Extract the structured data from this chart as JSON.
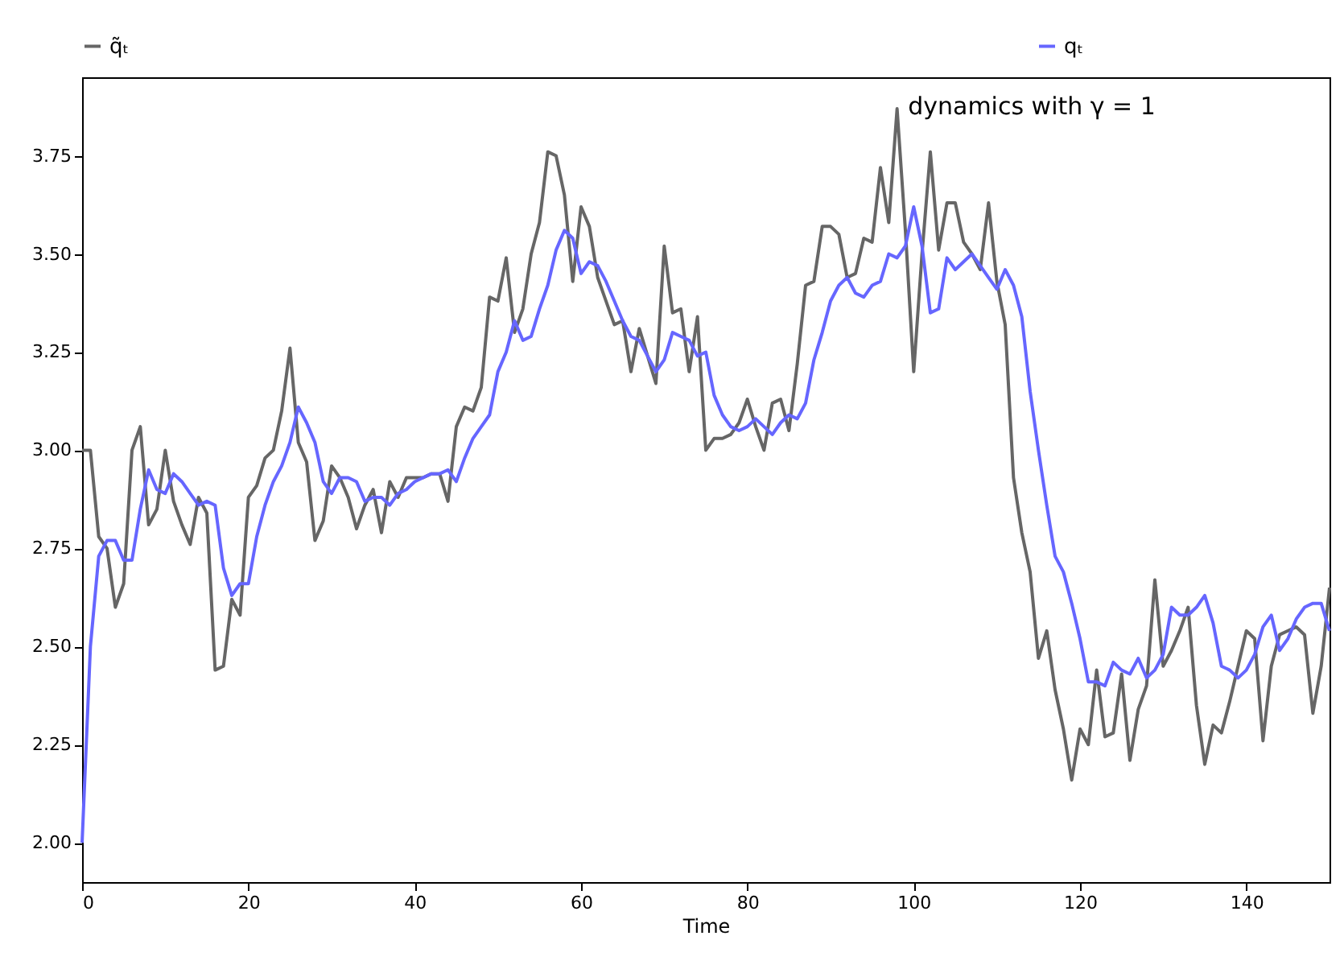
{
  "chart_data": {
    "type": "line",
    "xlabel": "Time",
    "annotations": [
      "dynamics with γ = 1"
    ],
    "x": [
      0,
      1,
      2,
      3,
      4,
      5,
      6,
      7,
      8,
      9,
      10,
      11,
      12,
      13,
      14,
      15,
      16,
      17,
      18,
      19,
      20,
      21,
      22,
      23,
      24,
      25,
      26,
      27,
      28,
      29,
      30,
      31,
      32,
      33,
      34,
      35,
      36,
      37,
      38,
      39,
      40,
      41,
      42,
      43,
      44,
      45,
      46,
      47,
      48,
      49,
      50,
      51,
      52,
      53,
      54,
      55,
      56,
      57,
      58,
      59,
      60,
      61,
      62,
      63,
      64,
      65,
      66,
      67,
      68,
      69,
      70,
      71,
      72,
      73,
      74,
      75,
      76,
      77,
      78,
      79,
      80,
      81,
      82,
      83,
      84,
      85,
      86,
      87,
      88,
      89,
      90,
      91,
      92,
      93,
      94,
      95,
      96,
      97,
      98,
      99,
      100,
      101,
      102,
      103,
      104,
      105,
      106,
      107,
      108,
      109,
      110,
      111,
      112,
      113,
      114,
      115,
      116,
      117,
      118,
      119,
      120,
      121,
      122,
      123,
      124,
      125,
      126,
      127,
      128,
      129,
      130,
      131,
      132,
      133,
      134,
      135,
      136,
      137,
      138,
      139,
      140,
      141,
      142,
      143,
      144,
      145,
      146,
      147,
      148,
      149,
      150
    ],
    "series": [
      {
        "name": "q̃ₜ",
        "color": "#666666",
        "values": [
          3.0,
          3.0,
          2.78,
          2.75,
          2.6,
          2.66,
          3.0,
          3.06,
          2.81,
          2.85,
          3.0,
          2.87,
          2.81,
          2.76,
          2.88,
          2.84,
          2.44,
          2.45,
          2.62,
          2.58,
          2.88,
          2.91,
          2.98,
          3.0,
          3.1,
          3.26,
          3.02,
          2.97,
          2.77,
          2.82,
          2.96,
          2.93,
          2.88,
          2.8,
          2.86,
          2.9,
          2.79,
          2.92,
          2.88,
          2.93,
          2.93,
          2.93,
          2.94,
          2.94,
          2.87,
          3.06,
          3.11,
          3.1,
          3.16,
          3.39,
          3.38,
          3.49,
          3.3,
          3.36,
          3.5,
          3.58,
          3.76,
          3.75,
          3.65,
          3.43,
          3.62,
          3.57,
          3.44,
          3.38,
          3.32,
          3.33,
          3.2,
          3.31,
          3.24,
          3.17,
          3.52,
          3.35,
          3.36,
          3.2,
          3.34,
          3.0,
          3.03,
          3.03,
          3.04,
          3.07,
          3.13,
          3.06,
          3.0,
          3.12,
          3.13,
          3.05,
          3.22,
          3.42,
          3.43,
          3.57,
          3.57,
          3.55,
          3.44,
          3.45,
          3.54,
          3.53,
          3.72,
          3.58,
          3.87,
          3.56,
          3.2,
          3.5,
          3.76,
          3.51,
          3.63,
          3.63,
          3.53,
          3.5,
          3.46,
          3.63,
          3.43,
          3.32,
          2.93,
          2.79,
          2.69,
          2.47,
          2.54,
          2.39,
          2.29,
          2.16,
          2.29,
          2.25,
          2.44,
          2.27,
          2.28,
          2.43,
          2.21,
          2.34,
          2.4,
          2.67,
          2.45,
          2.49,
          2.54,
          2.6,
          2.35,
          2.2,
          2.3,
          2.28,
          2.36,
          2.45,
          2.54,
          2.52,
          2.26,
          2.45,
          2.53,
          2.54,
          2.55,
          2.53,
          2.33,
          2.45,
          2.65
        ]
      },
      {
        "name": "qₜ",
        "color": "#6666ff",
        "values": [
          2.0,
          2.5,
          2.73,
          2.77,
          2.77,
          2.72,
          2.72,
          2.85,
          2.95,
          2.9,
          2.89,
          2.94,
          2.92,
          2.89,
          2.86,
          2.87,
          2.86,
          2.7,
          2.63,
          2.66,
          2.66,
          2.78,
          2.86,
          2.92,
          2.96,
          3.02,
          3.11,
          3.07,
          3.02,
          2.92,
          2.89,
          2.93,
          2.93,
          2.92,
          2.87,
          2.88,
          2.88,
          2.86,
          2.89,
          2.9,
          2.92,
          2.93,
          2.94,
          2.94,
          2.95,
          2.92,
          2.98,
          3.03,
          3.06,
          3.09,
          3.2,
          3.25,
          3.33,
          3.28,
          3.29,
          3.36,
          3.42,
          3.51,
          3.56,
          3.54,
          3.45,
          3.48,
          3.47,
          3.43,
          3.38,
          3.33,
          3.29,
          3.28,
          3.24,
          3.2,
          3.23,
          3.3,
          3.29,
          3.28,
          3.24,
          3.25,
          3.14,
          3.09,
          3.06,
          3.05,
          3.06,
          3.08,
          3.06,
          3.04,
          3.07,
          3.09,
          3.08,
          3.12,
          3.23,
          3.3,
          3.38,
          3.42,
          3.44,
          3.4,
          3.39,
          3.42,
          3.43,
          3.5,
          3.49,
          3.52,
          3.62,
          3.52,
          3.35,
          3.36,
          3.49,
          3.46,
          3.48,
          3.5,
          3.47,
          3.44,
          3.41,
          3.46,
          3.42,
          3.34,
          3.15,
          3.0,
          2.86,
          2.73,
          2.69,
          2.61,
          2.52,
          2.41,
          2.41,
          2.4,
          2.46,
          2.44,
          2.43,
          2.47,
          2.42,
          2.44,
          2.48,
          2.6,
          2.58,
          2.58,
          2.6,
          2.63,
          2.56,
          2.45,
          2.44,
          2.42,
          2.44,
          2.48,
          2.55,
          2.58,
          2.49,
          2.52,
          2.57,
          2.6,
          2.61,
          2.61,
          2.54
        ]
      }
    ],
    "xlim": [
      0,
      150
    ],
    "xticks": [
      0,
      20,
      40,
      60,
      80,
      100,
      120,
      140
    ],
    "ylim": [
      1.9,
      3.95
    ],
    "yticks": [
      {
        "value": 2.0,
        "label": "2.00"
      },
      {
        "value": 2.25,
        "label": "2.25"
      },
      {
        "value": 2.5,
        "label": "2.50"
      },
      {
        "value": 2.75,
        "label": "2.75"
      },
      {
        "value": 3.0,
        "label": "3.00"
      },
      {
        "value": 3.25,
        "label": "3.25"
      },
      {
        "value": 3.5,
        "label": "3.50"
      },
      {
        "value": 3.75,
        "label": "3.75"
      }
    ],
    "grid": false,
    "legend": "top",
    "marker": "none",
    "line_style": "solid"
  }
}
